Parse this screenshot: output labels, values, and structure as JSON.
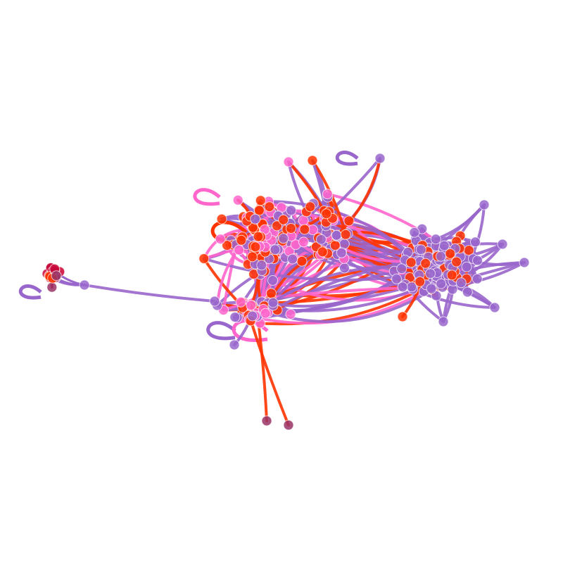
{
  "graph": {
    "colors": {
      "purple": "#9966cc",
      "red": "#ff3300",
      "pink": "#ff66cc",
      "crimson": "#cc0033",
      "maroon": "#993366"
    }
  }
}
